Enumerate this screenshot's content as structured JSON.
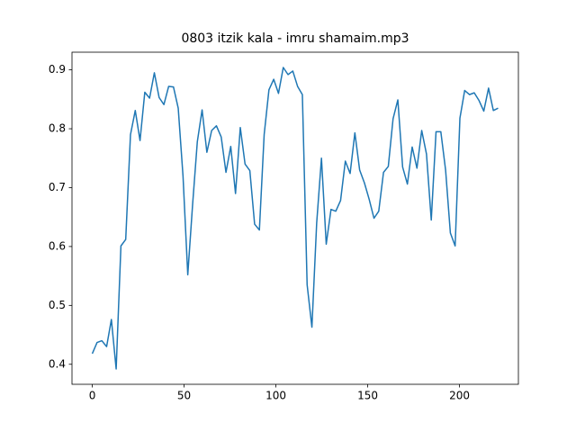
{
  "chart_data": {
    "type": "line",
    "title": "0803 itzik kala - imru shamaim.mp3",
    "x": [
      0,
      2.6,
      5.2,
      7.8,
      10.4,
      13,
      15.6,
      18.2,
      20.8,
      23.4,
      26,
      28.6,
      31.2,
      33.8,
      36.4,
      39,
      41.6,
      44.2,
      46.8,
      49.4,
      52,
      54.6,
      57.2,
      59.8,
      62.4,
      65,
      67.6,
      70.2,
      72.8,
      75.4,
      78,
      80.6,
      83.2,
      85.8,
      88.4,
      91,
      93.6,
      96.2,
      98.8,
      101.4,
      104,
      106.6,
      109.2,
      111.8,
      114.4,
      117,
      119.6,
      122.2,
      124.8,
      127.4,
      130,
      132.6,
      135.2,
      137.8,
      140.4,
      143,
      145.6,
      148.2,
      150.8,
      153.4,
      156,
      158.6,
      161.2,
      163.8,
      166.4,
      169,
      171.6,
      174.2,
      176.8,
      179.4,
      182,
      184.6,
      187.2,
      189.8,
      192.4,
      195,
      197.6,
      200.2,
      202.8,
      205.4,
      208,
      210.6,
      213.2,
      215.8,
      218.4,
      221
    ],
    "series": [
      {
        "color": "#1f77b4",
        "values": [
          0.418,
          0.437,
          0.44,
          0.43,
          0.476,
          0.392,
          0.601,
          0.612,
          0.79,
          0.831,
          0.78,
          0.862,
          0.852,
          0.895,
          0.853,
          0.841,
          0.872,
          0.871,
          0.835,
          0.72,
          0.552,
          0.67,
          0.778,
          0.832,
          0.76,
          0.797,
          0.805,
          0.786,
          0.726,
          0.77,
          0.69,
          0.802,
          0.74,
          0.729,
          0.638,
          0.628,
          0.79,
          0.866,
          0.884,
          0.86,
          0.904,
          0.892,
          0.898,
          0.872,
          0.858,
          0.535,
          0.463,
          0.64,
          0.75,
          0.604,
          0.663,
          0.66,
          0.678,
          0.745,
          0.724,
          0.793,
          0.73,
          0.708,
          0.68,
          0.648,
          0.66,
          0.726,
          0.736,
          0.817,
          0.849,
          0.735,
          0.706,
          0.769,
          0.733,
          0.797,
          0.757,
          0.645,
          0.795,
          0.795,
          0.73,
          0.623,
          0.601,
          0.818,
          0.865,
          0.858,
          0.861,
          0.848,
          0.83,
          0.869,
          0.831,
          0.835
        ]
      }
    ],
    "xlim": [
      -11.05,
      232.05
    ],
    "ylim": [
      0.366,
      0.93
    ],
    "xticks": [
      0,
      50,
      100,
      150,
      200
    ],
    "yticks": [
      0.4,
      0.5,
      0.6,
      0.7,
      0.8,
      0.9
    ],
    "grid": false
  }
}
